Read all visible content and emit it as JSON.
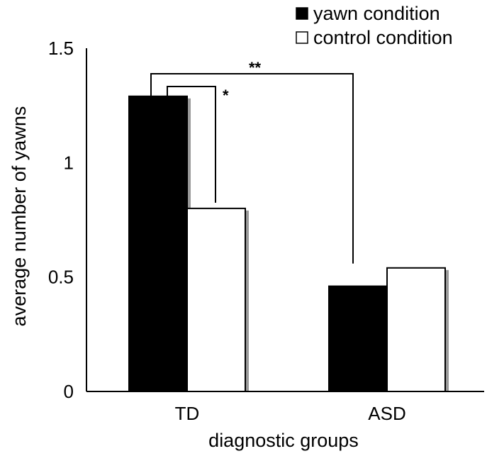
{
  "chart_data": {
    "type": "bar",
    "title": "",
    "xlabel": "diagnostic groups",
    "ylabel": "average number of yawns",
    "categories": [
      "TD",
      "ASD"
    ],
    "series": [
      {
        "name": "yawn condition",
        "values": [
          1.29,
          0.46
        ],
        "color": "#000000"
      },
      {
        "name": "control condition",
        "values": [
          0.8,
          0.54
        ],
        "color": "#ffffff"
      }
    ],
    "ylim": [
      0,
      1.5
    ],
    "yticks": [
      {
        "value": 0,
        "label": "0"
      },
      {
        "value": 0.5,
        "label": "0.5"
      },
      {
        "value": 1,
        "label": "1"
      },
      {
        "value": 1.5,
        "label": "1.5"
      }
    ],
    "grid": false,
    "legend_position": "top-right",
    "significance": [
      {
        "label": "*",
        "from": "TD yawn condition",
        "to": "TD control condition"
      },
      {
        "label": "**",
        "from": "TD yawn condition",
        "to": "ASD yawn condition"
      }
    ],
    "colors": {
      "shadow": "#999999",
      "axis": "#000000"
    }
  }
}
